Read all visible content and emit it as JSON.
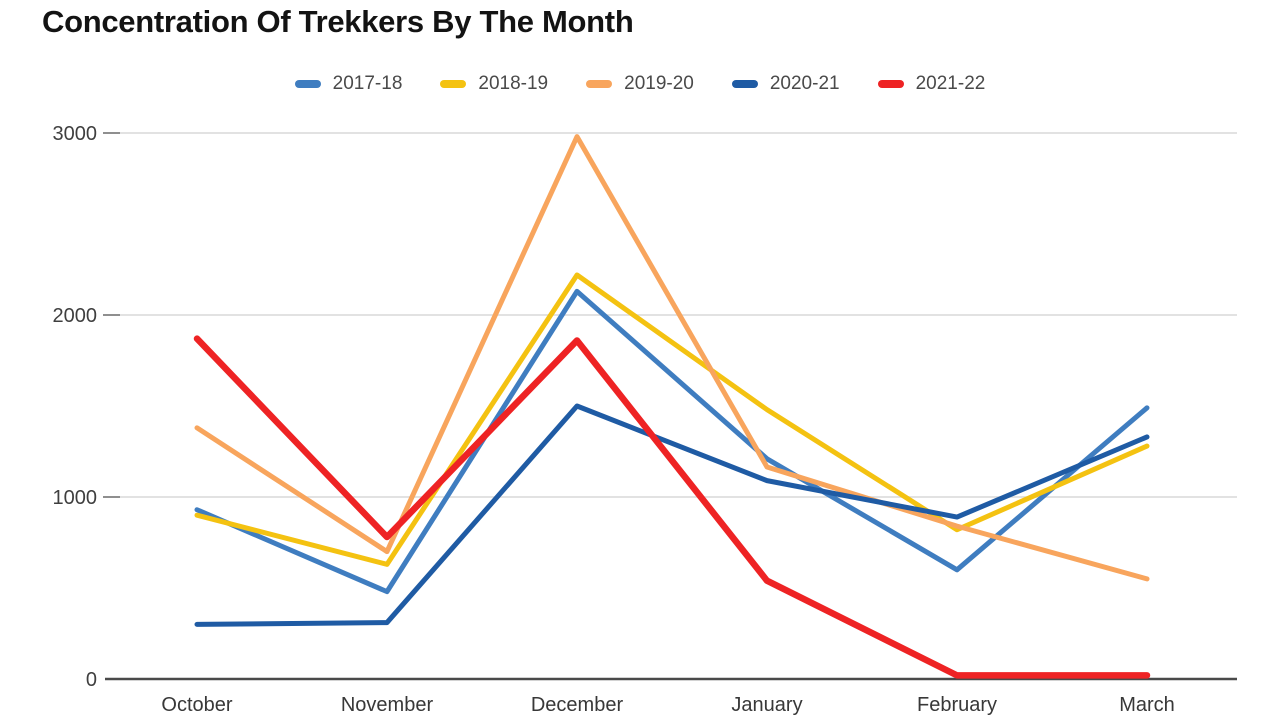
{
  "title": "Concentration Of Trekkers By The Month",
  "chart_data": {
    "type": "line",
    "title": "Concentration Of Trekkers By The Month",
    "categories": [
      "October",
      "November",
      "December",
      "January",
      "February",
      "March"
    ],
    "series": [
      {
        "name": "2017-18",
        "color": "#3F7DC0",
        "stroke_width": 5,
        "values": [
          930,
          480,
          2130,
          1210,
          600,
          1490
        ]
      },
      {
        "name": "2018-19",
        "color": "#F4C211",
        "stroke_width": 5,
        "values": [
          900,
          630,
          2220,
          1480,
          820,
          1280
        ]
      },
      {
        "name": "2019-20",
        "color": "#F8A55D",
        "stroke_width": 5,
        "values": [
          1380,
          700,
          2980,
          1165,
          840,
          550
        ]
      },
      {
        "name": "2020-21",
        "color": "#1F5BA4",
        "stroke_width": 5,
        "values": [
          300,
          310,
          1500,
          1090,
          890,
          1330
        ]
      },
      {
        "name": "2021-22",
        "color": "#EE2324",
        "stroke_width": 6.5,
        "values": [
          1870,
          780,
          1860,
          540,
          20,
          20
        ]
      }
    ],
    "xlabel": "",
    "ylabel": "",
    "ylim": [
      0,
      3000
    ],
    "yticks": [
      0,
      1000,
      2000,
      3000
    ],
    "grid": true,
    "legend_position": "top",
    "axis_color": "#4a4a4a",
    "gridline_color": "#d9d9d9",
    "tick_color": "#8f8f8f",
    "tick_label_color": "#3f3f3f"
  }
}
